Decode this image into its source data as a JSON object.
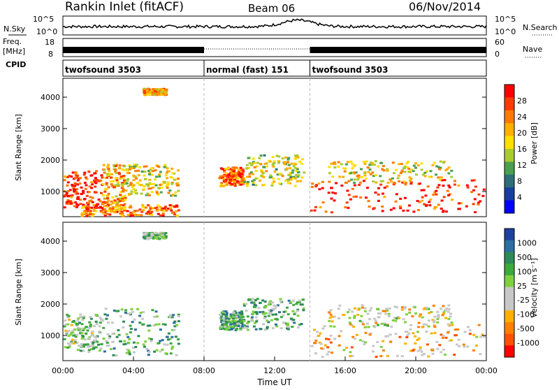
{
  "header": {
    "title": "Rankin Inlet (fitACF)",
    "beam": "Beam 06",
    "date": "06/Nov/2014"
  },
  "status_panels": {
    "nsky_label": "N.Sky",
    "nsearch_label": "N.Search",
    "nsky_ticks": [
      "10^5",
      "10^0"
    ],
    "freq_label": "Freq.",
    "freq_unit": "[MHz]",
    "freq_ticks": [
      "18",
      "8"
    ],
    "nave_label": "Nave",
    "nave_ticks": [
      "60",
      "0"
    ],
    "cpid_label": "CPID",
    "cpid_segments": [
      {
        "label": "twofsound 3503",
        "start_hour": 0,
        "end_hour": 8
      },
      {
        "label": "normal (fast) 151",
        "start_hour": 8,
        "end_hour": 14
      },
      {
        "label": "twofsound 3503",
        "start_hour": 14,
        "end_hour": 24
      }
    ]
  },
  "chart_data": [
    {
      "type": "heatmap",
      "name": "power-panel",
      "ylabel": "Slant Range [km]",
      "yticks": [
        1000,
        2000,
        3000,
        4000
      ],
      "ylim": [
        200,
        4600
      ],
      "xlim": [
        0,
        24
      ],
      "colorbar": {
        "label": "Power [dB]",
        "ticks": [
          "28",
          "24",
          "20",
          "16",
          "12",
          "8",
          "4"
        ],
        "colors": [
          "#ff0000",
          "#ff3a00",
          "#ff7a00",
          "#ffb000",
          "#ffdf00",
          "#a8cc30",
          "#4aa050",
          "#2d6e78",
          "#1a3ea0",
          "#0000ff"
        ]
      },
      "echo_regions": [
        {
          "x": [
            0.0,
            2.2
          ],
          "y": [
            500,
            1700
          ],
          "level": 0.1
        },
        {
          "x": [
            2.2,
            3.5
          ],
          "y": [
            400,
            1900
          ],
          "level": 0.35
        },
        {
          "x": [
            3.5,
            6.5
          ],
          "y": [
            900,
            1900
          ],
          "level": 0.45
        },
        {
          "x": [
            1.0,
            6.5
          ],
          "y": [
            250,
            600
          ],
          "level": 0.25
        },
        {
          "x": [
            8.8,
            10.2
          ],
          "y": [
            1200,
            1800
          ],
          "level": 0.2
        },
        {
          "x": [
            10.2,
            13.6
          ],
          "y": [
            1200,
            2200
          ],
          "level": 0.5
        },
        {
          "x": [
            14.0,
            23.8
          ],
          "y": [
            350,
            1400
          ],
          "level": 0.1
        },
        {
          "x": [
            15.0,
            22.0
          ],
          "y": [
            1300,
            2000
          ],
          "level": 0.45
        },
        {
          "x": [
            4.5,
            5.8
          ],
          "y": [
            4100,
            4300
          ],
          "level": 0.35
        }
      ]
    },
    {
      "type": "heatmap",
      "name": "velocity-panel",
      "ylabel": "Slant Range [km]",
      "yticks": [
        1000,
        2000,
        3000,
        4000
      ],
      "ylim": [
        200,
        4600
      ],
      "xlim": [
        0,
        24
      ],
      "colorbar": {
        "label": "Velocity [m s⁻¹]",
        "ticks": [
          "1000",
          "500",
          "100",
          "25",
          "-25",
          "-100",
          "-500",
          "-1000"
        ],
        "colors": [
          "#2040a0",
          "#2d6fa0",
          "#2e8a58",
          "#3caa3c",
          "#80d040",
          "#c8c8c8",
          "#c8c8c8",
          "#ffb000",
          "#ff8000",
          "#ff5000",
          "#ff0000"
        ]
      },
      "echo_regions": [
        {
          "x": [
            0.0,
            2.2
          ],
          "y": [
            500,
            1700
          ],
          "level": 0.45
        },
        {
          "x": [
            2.2,
            6.5
          ],
          "y": [
            400,
            1900
          ],
          "level": 0.35
        },
        {
          "x": [
            8.8,
            10.2
          ],
          "y": [
            1200,
            1800
          ],
          "level": 0.3
        },
        {
          "x": [
            10.2,
            13.6
          ],
          "y": [
            1200,
            2200
          ],
          "level": 0.35
        },
        {
          "x": [
            14.0,
            23.8
          ],
          "y": [
            350,
            1400
          ],
          "level": 0.65
        },
        {
          "x": [
            15.0,
            22.0
          ],
          "y": [
            1300,
            2000
          ],
          "level": 0.55
        },
        {
          "x": [
            4.5,
            5.8
          ],
          "y": [
            4100,
            4300
          ],
          "level": 0.4
        }
      ]
    }
  ],
  "time_axis": {
    "ticks": [
      "00:00",
      "04:00",
      "08:00",
      "12:00",
      "16:00",
      "20:00",
      "00:00"
    ],
    "xlabel": "Time UT"
  }
}
